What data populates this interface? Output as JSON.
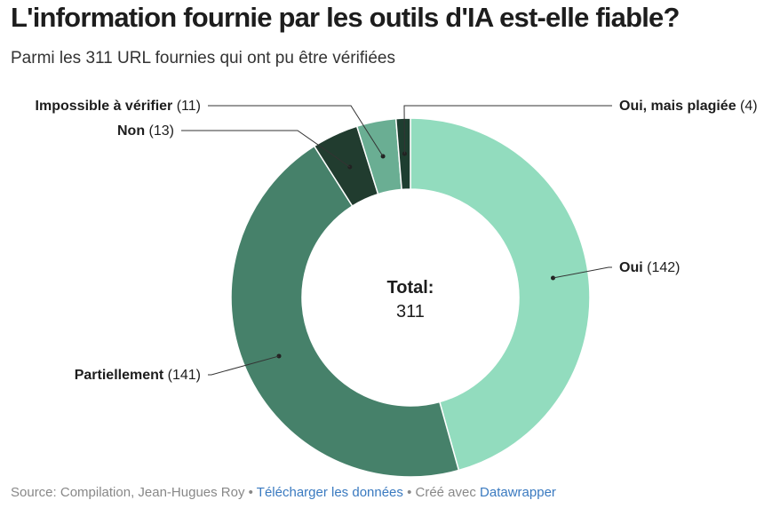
{
  "title": "L'information fournie par les outils d'IA est-elle fiable?",
  "subtitle": "Parmi les 311 URL fournies qui ont pu être vérifiées",
  "chart_data": {
    "type": "pie",
    "donut": true,
    "slices": [
      {
        "label": "Oui",
        "value": 142,
        "display": "(142)",
        "color": "#92dcbe"
      },
      {
        "label": "Partiellement",
        "value": 141,
        "display": "(141)",
        "color": "#46816a"
      },
      {
        "label": "Non",
        "value": 13,
        "display": "(13)",
        "color": "#213c2f"
      },
      {
        "label": "Impossible à vérifier",
        "value": 11,
        "display": "(11)",
        "color": "#6aae93"
      },
      {
        "label": "Oui, mais plagiée",
        "value": 4,
        "display": "(4)",
        "color": "#1e3e30"
      }
    ],
    "center_label": "Total:",
    "center_value": "311"
  },
  "footer": {
    "source": "Source: Compilation, Jean-Hugues Roy",
    "sep1": " • ",
    "download_link": "Télécharger les données",
    "sep2": " • Créé avec ",
    "datawrapper_link": "Datawrapper"
  }
}
